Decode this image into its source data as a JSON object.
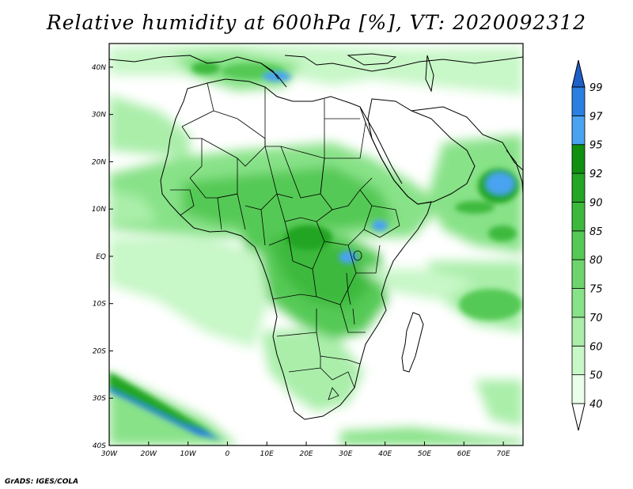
{
  "title": "Relative humidity at 600hPa [%], VT: 2020092312",
  "credit": "GrADS: IGES/COLA",
  "map": {
    "lon_range": [
      -30,
      75
    ],
    "lat_range": [
      -40,
      45
    ],
    "lon_ticks": [
      {
        "value": -30,
        "label": "30W"
      },
      {
        "value": -20,
        "label": "20W"
      },
      {
        "value": -10,
        "label": "10W"
      },
      {
        "value": 0,
        "label": "0"
      },
      {
        "value": 10,
        "label": "10E"
      },
      {
        "value": 20,
        "label": "20E"
      },
      {
        "value": 30,
        "label": "30E"
      },
      {
        "value": 40,
        "label": "40E"
      },
      {
        "value": 50,
        "label": "50E"
      },
      {
        "value": 60,
        "label": "60E"
      },
      {
        "value": 70,
        "label": "70E"
      }
    ],
    "lat_ticks": [
      {
        "value": 40,
        "label": "40N"
      },
      {
        "value": 30,
        "label": "30N"
      },
      {
        "value": 20,
        "label": "20N"
      },
      {
        "value": 10,
        "label": "10N"
      },
      {
        "value": 0,
        "label": "EQ"
      },
      {
        "value": -10,
        "label": "10S"
      },
      {
        "value": -20,
        "label": "20S"
      },
      {
        "value": -30,
        "label": "30S"
      },
      {
        "value": -40,
        "label": "40S"
      }
    ]
  },
  "colorbar": {
    "levels": [
      40,
      50,
      60,
      70,
      75,
      80,
      85,
      90,
      92,
      95,
      97,
      99
    ],
    "colors": [
      "#eaffea",
      "#c8f7c8",
      "#aaeeaa",
      "#88e288",
      "#6ed56e",
      "#55c955",
      "#3cb93c",
      "#24a524",
      "#108f10",
      "#4aa3f0",
      "#2a7fe0",
      "#1e5fc8"
    ]
  }
}
